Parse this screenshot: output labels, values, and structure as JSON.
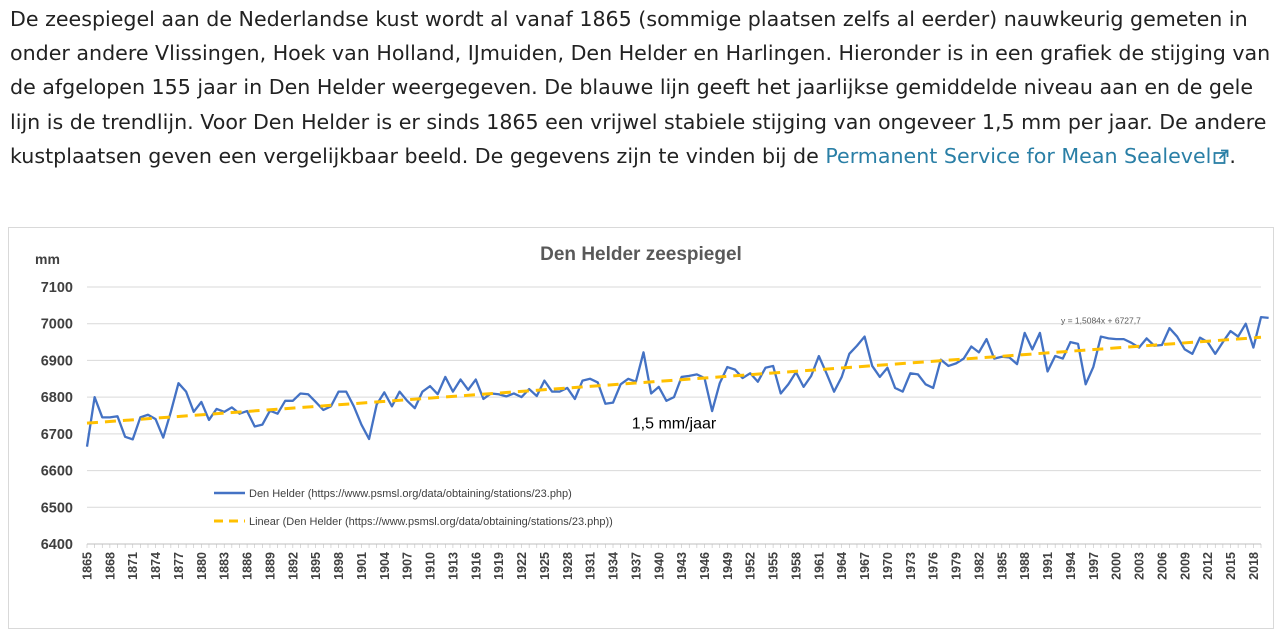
{
  "article": {
    "paragraph_text": "De zeespiegel aan de Nederlandse kust wordt al vanaf 1865 (sommige plaatsen zelfs al eerder) nauwkeurig gemeten in onder andere Vlissingen, Hoek van Holland, IJmuiden, Den Helder en Harlingen. Hieronder is in een grafiek de stijging van de afgelopen 155 jaar in Den Helder weergegeven. De blauwe lijn geeft het jaarlijkse gemiddelde niveau aan en de gele lijn is de trendlijn. Voor Den Helder is er sinds 1865 een vrijwel stabiele stijging van ongeveer 1,5 mm per jaar. De andere kustplaatsen geven een vergelijkbaar beeld. De gegevens zijn te vinden bij de ",
    "link_text": "Permanent Service for Mean Sealevel",
    "trailing_text": ".",
    "link_color": "#2a7fa6",
    "link_icon": "external-link-icon"
  },
  "chart_data": {
    "type": "line",
    "title": "Den Helder zeespiegel",
    "ylabel": "mm",
    "xlabel": "",
    "ylim": [
      6400,
      7100
    ],
    "yticks": [
      6400,
      6500,
      6600,
      6700,
      6800,
      6900,
      7000,
      7100
    ],
    "xlim": [
      1865,
      2019
    ],
    "xticks": [
      "1865",
      "1868",
      "1871",
      "1874",
      "1877",
      "1880",
      "1883",
      "1886",
      "1889",
      "1892",
      "1895",
      "1898",
      "1901",
      "1904",
      "1907",
      "1910",
      "1913",
      "1916",
      "1919",
      "1922",
      "1925",
      "1928",
      "1931",
      "1934",
      "1937",
      "1940",
      "1943",
      "1946",
      "1949",
      "1952",
      "1955",
      "1958",
      "1961",
      "1964",
      "1967",
      "1970",
      "1973",
      "1976",
      "1979",
      "1982",
      "1985",
      "1988",
      "1991",
      "1994",
      "1997",
      "2000",
      "2003",
      "2006",
      "2009",
      "2012",
      "2015",
      "2018"
    ],
    "grid": true,
    "legend_position": "lower-left",
    "series": [
      {
        "name": "Den Helder (https://www.psmsl.org/data/obtaining/stations/23.php)",
        "color": "#4472c4",
        "style": "solid",
        "x_start": 1865,
        "values": [
          6665,
          6800,
          6745,
          6745,
          6748,
          6692,
          6685,
          6745,
          6752,
          6740,
          6690,
          6760,
          6838,
          6815,
          6760,
          6787,
          6738,
          6768,
          6760,
          6772,
          6755,
          6762,
          6720,
          6725,
          6763,
          6755,
          6790,
          6790,
          6810,
          6808,
          6787,
          6765,
          6775,
          6815,
          6815,
          6775,
          6725,
          6686,
          6780,
          6813,
          6775,
          6815,
          6790,
          6770,
          6815,
          6830,
          6808,
          6855,
          6815,
          6848,
          6820,
          6848,
          6795,
          6810,
          6808,
          6802,
          6810,
          6800,
          6822,
          6803,
          6845,
          6815,
          6815,
          6825,
          6795,
          6845,
          6850,
          6840,
          6782,
          6785,
          6835,
          6850,
          6842,
          6922,
          6810,
          6828,
          6790,
          6800,
          6855,
          6858,
          6862,
          6852,
          6762,
          6838,
          6882,
          6875,
          6852,
          6865,
          6842,
          6880,
          6885,
          6810,
          6835,
          6868,
          6828,
          6858,
          6912,
          6865,
          6815,
          6855,
          6918,
          6940,
          6965,
          6885,
          6855,
          6880,
          6825,
          6815,
          6865,
          6862,
          6835,
          6825,
          6902,
          6885,
          6892,
          6905,
          6938,
          6922,
          6958,
          6905,
          6910,
          6908,
          6890,
          6975,
          6930,
          6975,
          6870,
          6912,
          6905,
          6950,
          6945,
          6835,
          6882,
          6965,
          6960,
          6958,
          6958,
          6948,
          6935,
          6960,
          6940,
          6942,
          6988,
          6965,
          6930,
          6918,
          6962,
          6950,
          6918,
          6950,
          6980,
          6965,
          7000,
          6935,
          7018,
          7016
        ]
      },
      {
        "name": "Linear (Den Helder (https://www.psmsl.org/data/obtaining/stations/23.php))",
        "color": "#ffc000",
        "style": "dashed",
        "slope": 1.5084,
        "intercept": 6727.7
      }
    ],
    "annotations": [
      {
        "text": "1,5 mm/jaar",
        "x": 1942,
        "y": 6715
      },
      {
        "text": "y = 1,5084x + 6727,7",
        "x": 1998,
        "y": 7000
      }
    ]
  }
}
